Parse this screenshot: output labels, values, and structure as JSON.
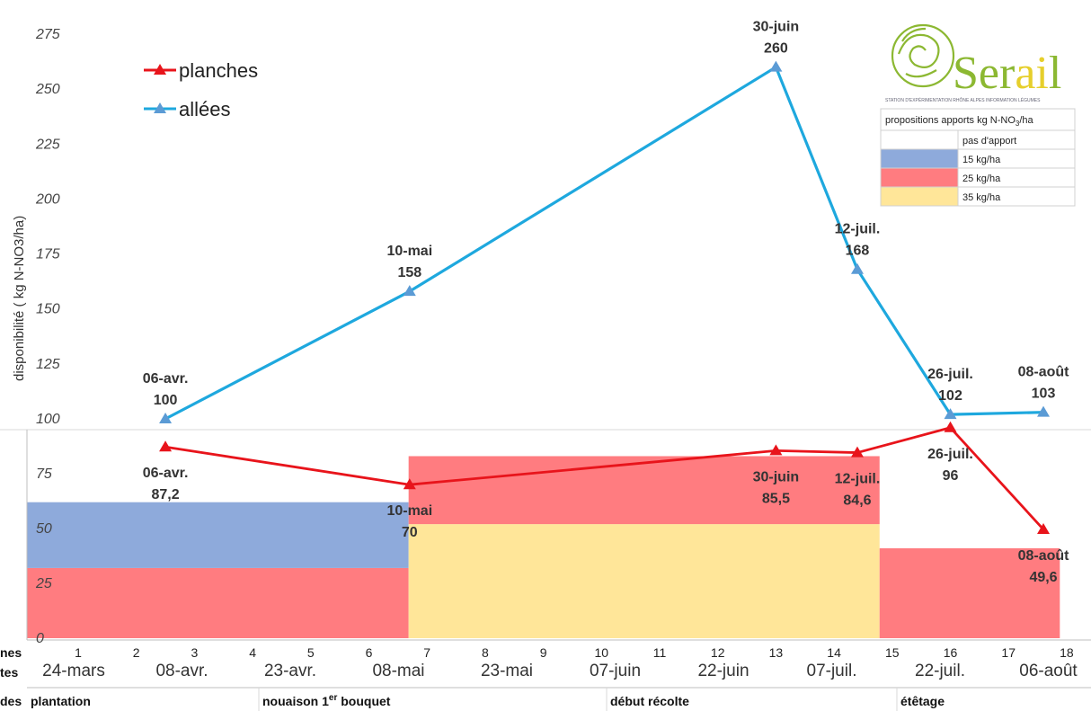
{
  "chart_data": {
    "type": "line",
    "ylabel": "disponibilité ( kg N-NO3/ha)",
    "ylim_upper": [
      100,
      275
    ],
    "ylim_lower": [
      0,
      100
    ],
    "yticks_upper": [
      "275",
      "250",
      "225",
      "200",
      "175",
      "150",
      "125",
      "100"
    ],
    "yticks_lower": [
      "75",
      "50",
      "25",
      "0"
    ],
    "weeks": [
      "1",
      "2",
      "3",
      "4",
      "5",
      "6",
      "7",
      "8",
      "9",
      "10",
      "11",
      "12",
      "13",
      "14",
      "15",
      "16",
      "17",
      "18"
    ],
    "dates": [
      "24-mars",
      "08-avr.",
      "23-avr.",
      "08-mai",
      "23-mai",
      "07-juin",
      "22-juin",
      "07-juil.",
      "22-juil.",
      "06-août"
    ],
    "stages": [
      {
        "label": "plantation"
      },
      {
        "label": "nouaison 1",
        "sup": "er",
        "tail": " bouquet"
      },
      {
        "label": "début récolte"
      },
      {
        "label": "étêtage"
      }
    ],
    "row_headers": [
      "nes",
      "tes",
      "des"
    ],
    "series": [
      {
        "name": "planches",
        "color": "#e8141b",
        "points": [
          {
            "week": 2.5,
            "value": 87.2,
            "date_label": "06-avr.",
            "value_label": "87,2"
          },
          {
            "week": 6.7,
            "value": 70,
            "date_label": "10-mai",
            "value_label": "70"
          },
          {
            "week": 13,
            "value": 85.5,
            "date_label": "30-juin",
            "value_label": "85,5"
          },
          {
            "week": 14.4,
            "value": 84.6,
            "date_label": "12-juil.",
            "value_label": "84,6"
          },
          {
            "week": 16,
            "value": 96,
            "date_label": "26-juil.",
            "value_label": "96"
          },
          {
            "week": 17.6,
            "value": 49.6,
            "date_label": "08-août",
            "value_label": "49,6"
          }
        ]
      },
      {
        "name": "allées",
        "color": "#1ea8de",
        "points": [
          {
            "week": 2.5,
            "value": 100,
            "date_label": "06-avr.",
            "value_label": "100"
          },
          {
            "week": 6.7,
            "value": 158,
            "date_label": "10-mai",
            "value_label": "158"
          },
          {
            "week": 13,
            "value": 260,
            "date_label": "30-juin",
            "value_label": "260"
          },
          {
            "week": 14.4,
            "value": 168,
            "date_label": "12-juil.",
            "value_label": "168"
          },
          {
            "week": 16,
            "value": 102,
            "date_label": "26-juil.",
            "value_label": "102"
          },
          {
            "week": 17.6,
            "value": 103,
            "date_label": "08-août",
            "value_label": "103"
          }
        ]
      }
    ],
    "recommendation_bands": [
      {
        "from_week": 0.5,
        "to_week": 7.1,
        "value": 32,
        "category": "25 kg/ha"
      },
      {
        "from_week": 0.5,
        "to_week": 7.1,
        "value_from": 32,
        "value_to": 62,
        "category": "15 kg/ha"
      },
      {
        "from_week": 7.1,
        "to_week": 15.2,
        "value": 52,
        "category": "35 kg/ha"
      },
      {
        "from_week": 7.1,
        "to_week": 15.2,
        "value_from": 52,
        "value_to": 83,
        "category": "25 kg/ha"
      },
      {
        "from_week": 15.2,
        "to_week": 18.3,
        "value": 41,
        "category": "25 kg/ha"
      }
    ],
    "legend_position": "top-left"
  },
  "logo": {
    "word_start": "S",
    "word_mid": "er",
    "word_accent": "ai",
    "word_end": "l",
    "subtitle": "STATION D'EXPÉRIMENTATION RHÔNE ALPES INFORMATION LÉGUMES",
    "green": "#8cb832",
    "yellow": "#e6cf2c"
  },
  "key_table": {
    "title_main": "propositions apports kg N-NO",
    "title_sub": "3",
    "title_tail": "/ha",
    "rows": [
      {
        "label": "pas d'apport",
        "color": "#ffffff"
      },
      {
        "label": "15 kg/ha",
        "color": "#8eaadb"
      },
      {
        "label": "25 kg/ha",
        "color": "#ff7c80"
      },
      {
        "label": "35 kg/ha",
        "color": "#ffe699"
      }
    ]
  }
}
